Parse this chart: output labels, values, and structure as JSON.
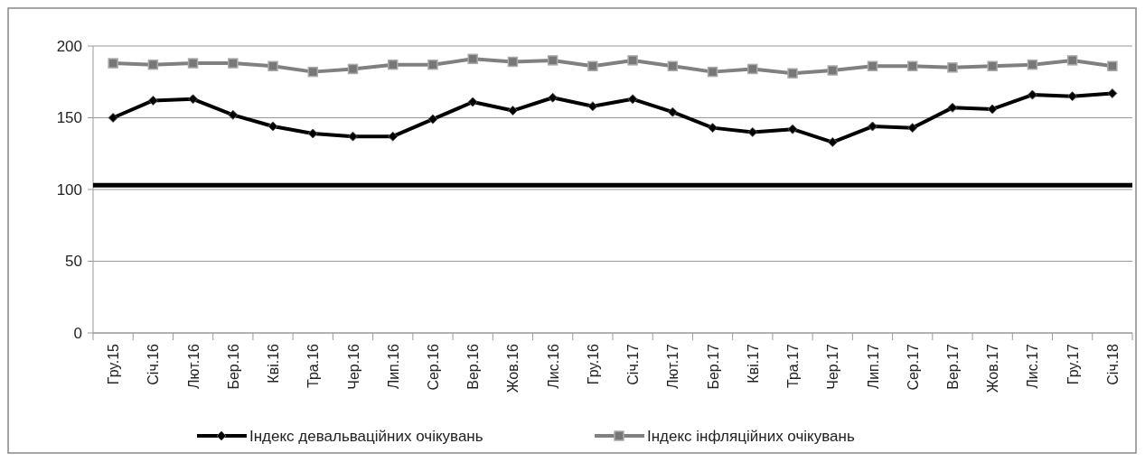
{
  "chart_data": {
    "type": "line",
    "categories": [
      "Гру.15",
      "Січ.16",
      "Лют.16",
      "Бер.16",
      "Кві.16",
      "Тра.16",
      "Чер.16",
      "Лип.16",
      "Сер.16",
      "Вер.16",
      "Жов.16",
      "Лис.16",
      "Гру.16",
      "Січ.17",
      "Лют.17",
      "Бер.17",
      "Кві.17",
      "Тра.17",
      "Чер.17",
      "Лип.17",
      "Сер.17",
      "Вер.17",
      "Жов.17",
      "Лис.17",
      "Гру.17",
      "Січ.18"
    ],
    "series": [
      {
        "name": "Індекс девальваційних очікувань",
        "color": "#000000",
        "marker": "diamond",
        "values": [
          150,
          162,
          163,
          152,
          144,
          139,
          137,
          137,
          149,
          161,
          155,
          164,
          158,
          163,
          154,
          143,
          140,
          142,
          133,
          144,
          143,
          157,
          156,
          166,
          165,
          167
        ]
      },
      {
        "name": "Індекс інфляційних очікувань",
        "color": "#808080",
        "marker": "square",
        "values": [
          188,
          187,
          188,
          188,
          186,
          182,
          184,
          187,
          187,
          191,
          189,
          190,
          186,
          190,
          186,
          182,
          184,
          181,
          183,
          186,
          186,
          185,
          186,
          187,
          190,
          186
        ]
      }
    ],
    "ylim": [
      0,
      200
    ],
    "yticks": [
      0,
      50,
      100,
      150,
      200
    ],
    "grid": "y",
    "legend": "bottom",
    "ref_lines": [
      {
        "axis": "y",
        "value": 103,
        "color": "#000000"
      }
    ]
  }
}
